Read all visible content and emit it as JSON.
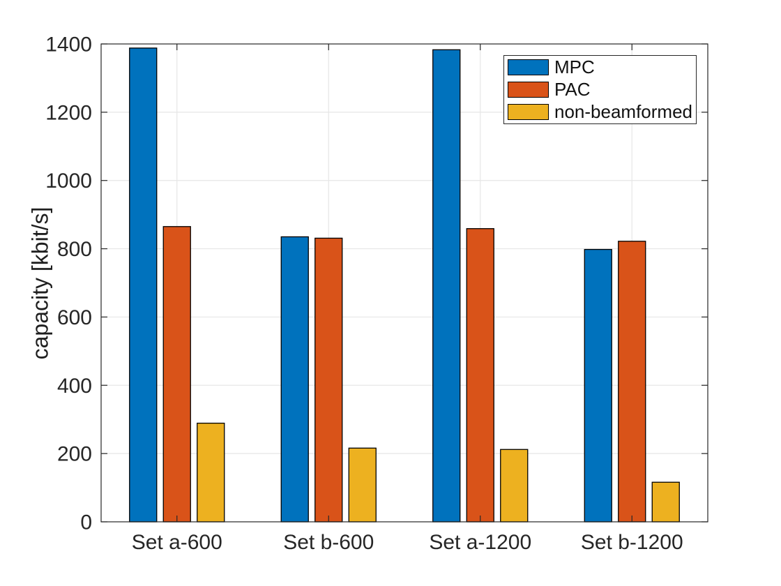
{
  "figure": {
    "background": "#ffffff",
    "axis_color": "#262626",
    "grid_color": "#e6e6e6",
    "text_color": "#262626",
    "bar_edge_color": "#000000"
  },
  "chart_data": {
    "type": "bar",
    "categories": [
      "Set a-600",
      "Set b-600",
      "Set a-1200",
      "Set b-1200"
    ],
    "series": [
      {
        "name": "MPC",
        "color": "#0072BD",
        "values": [
          1388,
          835,
          1383,
          798
        ]
      },
      {
        "name": "PAC",
        "color": "#D95319",
        "values": [
          865,
          831,
          859,
          822
        ]
      },
      {
        "name": "non-beamformed",
        "color": "#EDB120",
        "values": [
          289,
          216,
          212,
          116
        ]
      }
    ],
    "title": "",
    "xlabel": "",
    "ylabel": "capacity [kbit/s]",
    "ylim": [
      0,
      1400
    ],
    "yticks": [
      0,
      200,
      400,
      600,
      800,
      1000,
      1200,
      1400
    ],
    "grid": "on",
    "legend_position": "top-right"
  }
}
